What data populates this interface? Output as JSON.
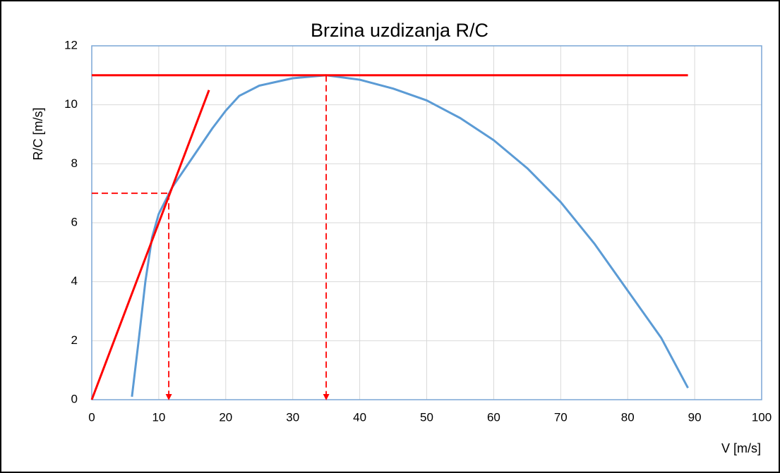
{
  "chart_data": {
    "type": "line",
    "title": "Brzina uzdizanja R/C",
    "xlabel": "V [m/s]",
    "ylabel": "R/C [m/s]",
    "xlim": [
      0,
      100
    ],
    "xticks": [
      0,
      10,
      20,
      30,
      40,
      50,
      60,
      70,
      80,
      90,
      100
    ],
    "ylim": [
      0,
      12
    ],
    "yticks": [
      0,
      2,
      4,
      6,
      8,
      10,
      12
    ],
    "grid": true,
    "series": [
      {
        "color": "#5b9bd5",
        "x": [
          6,
          7,
          8,
          9,
          10,
          12,
          15,
          18,
          20,
          22,
          25,
          30,
          35,
          40,
          45,
          50,
          55,
          60,
          65,
          70,
          75,
          80,
          85,
          89
        ],
        "values": [
          0.1,
          2,
          4,
          5.5,
          6.3,
          7.2,
          8.2,
          9.2,
          9.8,
          10.3,
          10.65,
          10.9,
          11.0,
          10.85,
          10.55,
          10.15,
          9.55,
          8.8,
          7.85,
          6.7,
          5.3,
          3.7,
          2.1,
          0.4
        ]
      },
      {
        "color": "#ff0000",
        "x": [
          0,
          89
        ],
        "values": [
          11,
          11
        ]
      },
      {
        "color": "#ff0000",
        "x": [
          0,
          17.5
        ],
        "values": [
          0,
          10.5
        ]
      },
      {
        "color": "#ff0000",
        "dashed": true,
        "x": [
          0,
          11.5
        ],
        "values": [
          7,
          7
        ]
      },
      {
        "color": "#ff0000",
        "dashed": true,
        "arrow": true,
        "x": [
          11.5,
          11.5
        ],
        "values": [
          7,
          0
        ]
      },
      {
        "color": "#ff0000",
        "dashed": true,
        "arrow": true,
        "x": [
          35,
          35
        ],
        "values": [
          11,
          0
        ]
      }
    ]
  }
}
